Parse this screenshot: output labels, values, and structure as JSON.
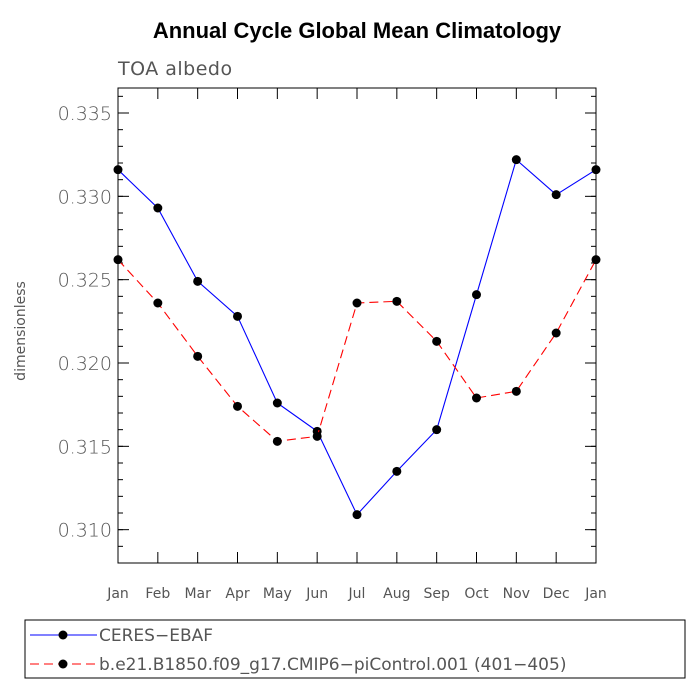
{
  "chart_data": {
    "type": "line",
    "title": "Annual Cycle Global Mean Climatology",
    "subtitle": "TOA albedo",
    "xlabel": "",
    "ylabel": "dimensionless",
    "categories": [
      "Jan",
      "Feb",
      "Mar",
      "Apr",
      "May",
      "Jun",
      "Jul",
      "Aug",
      "Sep",
      "Oct",
      "Nov",
      "Dec",
      "Jan"
    ],
    "ylim": [
      0.308,
      0.3365
    ],
    "yticks": [
      "0.310",
      "0.315",
      "0.320",
      "0.325",
      "0.330",
      "0.335"
    ],
    "ytick_values": [
      0.31,
      0.315,
      0.32,
      0.325,
      0.33,
      0.335
    ],
    "minor_ytick_step": 0.001,
    "series": [
      {
        "name": "CERES−EBAF",
        "color": "#0000ff",
        "dash": "solid",
        "marker": "circle",
        "values": [
          0.3316,
          0.3293,
          0.3249,
          0.3228,
          0.3176,
          0.3159,
          0.3109,
          0.3135,
          0.316,
          0.3241,
          0.3322,
          0.3301,
          0.3316
        ]
      },
      {
        "name": "b.e21.B1850.f09_g17.CMIP6−piControl.001 (401−405)",
        "color": "#ff0000",
        "dash": "dashed",
        "marker": "circle",
        "values": [
          0.3262,
          0.3236,
          0.3204,
          0.3174,
          0.3153,
          0.3156,
          0.3236,
          0.3237,
          0.3213,
          0.3179,
          0.3183,
          0.3218,
          0.3262
        ]
      }
    ],
    "legend_position": "bottom"
  }
}
